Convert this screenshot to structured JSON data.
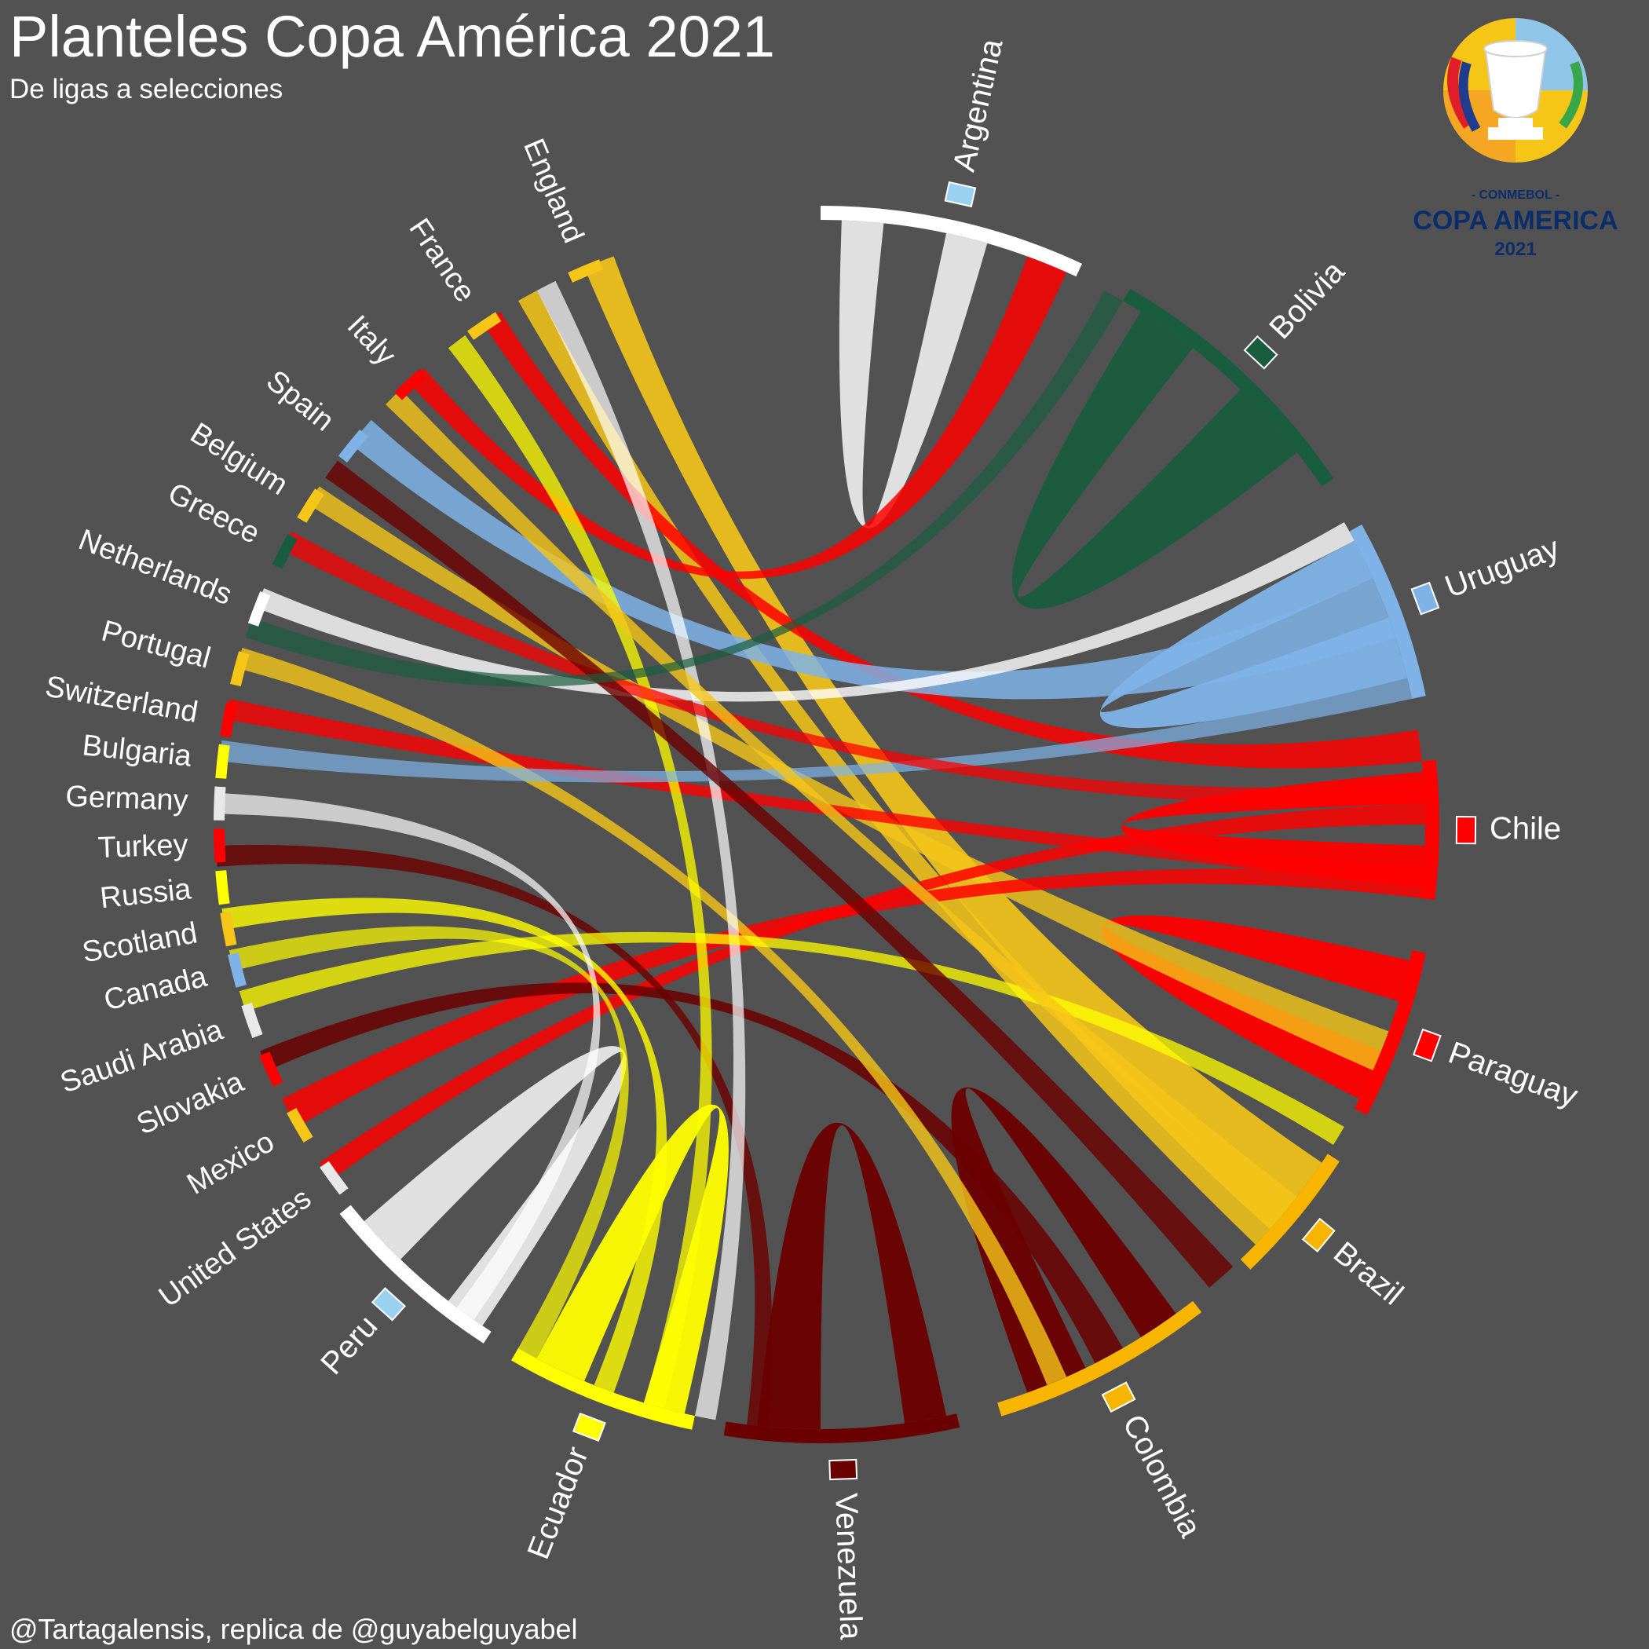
{
  "header": {
    "title": "Planteles Copa América 2021",
    "subtitle": "De ligas a selecciones"
  },
  "credit": "@Tartagalensis, replica de @guyabelguyabel",
  "logo": {
    "org": "- CONMEBOL -",
    "name": "COPA AMERICA",
    "year": "2021"
  },
  "teams": [
    {
      "name": "Argentina",
      "color": "#ffffff",
      "flag": "argentina-flag-icon"
    },
    {
      "name": "Bolivia",
      "color": "#1a5c40",
      "flag": "bolivia-flag-icon"
    },
    {
      "name": "Uruguay",
      "color": "#7fb3e8",
      "flag": "uruguay-flag-icon"
    },
    {
      "name": "Chile",
      "color": "#ff0000",
      "flag": "chile-flag-icon"
    },
    {
      "name": "Paraguay",
      "color": "#ff0000",
      "flag": "paraguay-flag-icon"
    },
    {
      "name": "Brazil",
      "color": "#f7b500",
      "flag": "brazil-flag-icon"
    },
    {
      "name": "Colombia",
      "color": "#f7b500",
      "flag": "colombia-flag-icon"
    },
    {
      "name": "Venezuela",
      "color": "#6b0000",
      "flag": "venezuela-flag-icon"
    },
    {
      "name": "Ecuador",
      "color": "#ffff00",
      "flag": "ecuador-flag-icon"
    },
    {
      "name": "Peru",
      "color": "#ffffff",
      "flag": "peru-flag-icon"
    }
  ],
  "leagues": [
    "United States",
    "Mexico",
    "Slovakia",
    "Saudi Arabia",
    "Canada",
    "Scotland",
    "Russia",
    "Turkey",
    "Germany",
    "Bulgaria",
    "Switzerland",
    "Portugal",
    "Netherlands",
    "Greece",
    "Belgium",
    "Spain",
    "Italy",
    "France",
    "England"
  ]
}
